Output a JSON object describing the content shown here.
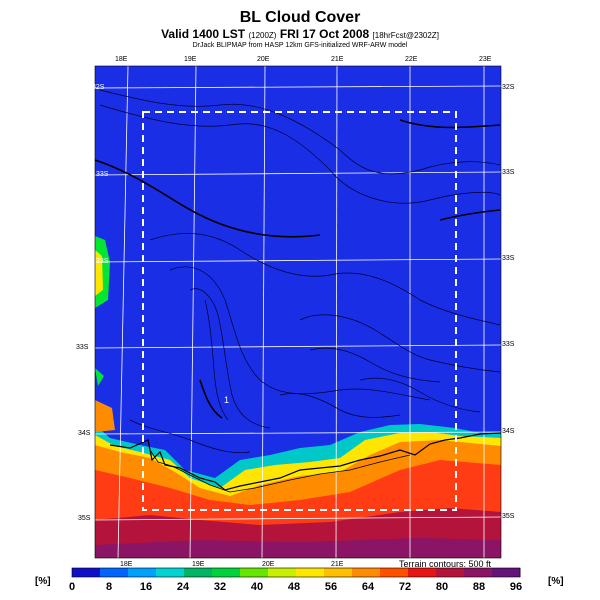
{
  "header": {
    "title": "BL Cloud Cover",
    "subtitle_main": "Valid 1400 LST",
    "subtitle_small": "(1200Z)",
    "subtitle_date": "FRI 17 Oct 2008",
    "subtitle_fcst": "[18hrFcst@2302Z]",
    "credit": "DrJack BLIPMAP from HASP 12km GFS-initialized WRF-ARW model"
  },
  "map": {
    "lon_labels_top": [
      "18E",
      "19E",
      "20E",
      "21E",
      "22E",
      "23E"
    ],
    "lon_labels_bottom": [
      "18E",
      "19E",
      "20E",
      "21E"
    ],
    "lat_labels_left": [
      "32S",
      "33S",
      "33S",
      "33S",
      "34S",
      "35S"
    ],
    "lat_labels_right": [
      "32S",
      "33S",
      "33S",
      "33S",
      "34S",
      "35S"
    ],
    "terrain_note": "Terrain contours: 500 ft",
    "point_marker": "1",
    "colors": {
      "clear": "#1a2ee6",
      "land_mask": "#ffffff"
    }
  },
  "colorbar": {
    "unit_left": "[%]",
    "unit_right": "[%]",
    "ticks": [
      "0",
      "8",
      "16",
      "24",
      "32",
      "40",
      "48",
      "56",
      "64",
      "72",
      "80",
      "88",
      "96"
    ],
    "colors": [
      "#1010c8",
      "#0064ff",
      "#00a0ff",
      "#00d2d2",
      "#00b464",
      "#00d23c",
      "#64e600",
      "#c8f000",
      "#ffe600",
      "#ffbe00",
      "#ff8c00",
      "#ff5000",
      "#e61414",
      "#b4143c",
      "#8c1464",
      "#641478"
    ]
  }
}
